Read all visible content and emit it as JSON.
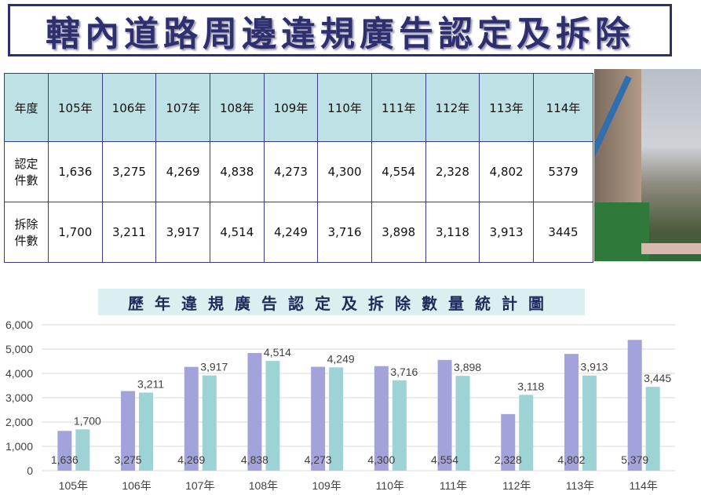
{
  "title": "轄內道路周邊違規廣告認定及拆除",
  "table": {
    "header": [
      "年度",
      "105年",
      "106年",
      "107年",
      "108年",
      "109年",
      "110年",
      "111年",
      "112年",
      "113年",
      "114年"
    ],
    "rows": [
      {
        "label_line1": "認定",
        "label_line2": "件數",
        "values": [
          "1,636",
          "3,275",
          "4,269",
          "4,838",
          "4,273",
          "4,300",
          "4,554",
          "2,328",
          "4,802",
          "5379"
        ]
      },
      {
        "label_line1": "拆除",
        "label_line2": "件數",
        "values": [
          "1,700",
          "3,211",
          "3,917",
          "4,514",
          "4,249",
          "3,716",
          "3,898",
          "3,118",
          "3,913",
          "3445"
        ]
      }
    ]
  },
  "chart_data": {
    "type": "bar",
    "title": "歷年違規廣告認定及拆除數量統計圖",
    "categories": [
      "105年",
      "106年",
      "107年",
      "108年",
      "109年",
      "110年",
      "111年",
      "112年",
      "113年",
      "114年"
    ],
    "series": [
      {
        "values": [
          1636,
          3275,
          4269,
          4838,
          4273,
          4300,
          4554,
          2328,
          4802,
          5379
        ],
        "color": "#a3a3dc"
      },
      {
        "values": [
          1700,
          3211,
          3917,
          4514,
          4249,
          3716,
          3898,
          3118,
          3913,
          3445
        ],
        "color": "#9ed3d6"
      }
    ],
    "ylim": [
      0,
      6000
    ],
    "yticks": [
      "0",
      "1,000",
      "2,000",
      "3,000",
      "4,000",
      "5,000",
      "6,000"
    ],
    "grid": true
  }
}
